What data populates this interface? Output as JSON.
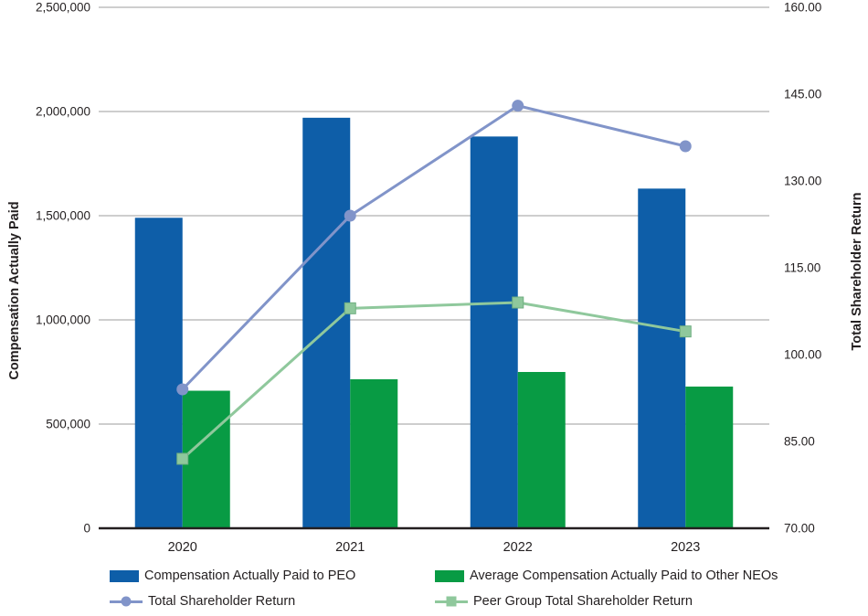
{
  "colors": {
    "peo_bar": "#0e5ea8",
    "neo_bar": "#089b44",
    "tsr_line": "#8194c9",
    "peer_tsr_line": "#8fc89c",
    "peer_marker_border": "#6fae80",
    "gridline": "#b1b1b1",
    "axis_line": "#231f20",
    "text": "#231f20"
  },
  "chart_data": {
    "type": "bar-line-combo",
    "grid": "horizontal",
    "legend_position": "bottom",
    "categories": [
      "2020",
      "2021",
      "2022",
      "2023"
    ],
    "bar_series": [
      {
        "key": "peo",
        "name": "Compensation Actually Paid to PEO",
        "axis": "left",
        "color_key": "peo_bar",
        "values": [
          1490000,
          1970000,
          1880000,
          1630000
        ]
      },
      {
        "key": "neo",
        "name": "Average Compensation Actually Paid to Other NEOs",
        "axis": "left",
        "color_key": "neo_bar",
        "values": [
          660000,
          715000,
          750000,
          680000
        ]
      }
    ],
    "line_series": [
      {
        "key": "tsr",
        "name": "Total Shareholder Return",
        "axis": "right",
        "marker": "circle",
        "color_key": "tsr_line",
        "values": [
          94,
          124,
          143,
          136
        ]
      },
      {
        "key": "peer_tsr",
        "name": "Peer Group Total Shareholder Return",
        "axis": "right",
        "marker": "square",
        "color_key": "peer_tsr_line",
        "values": [
          82,
          108,
          109,
          104
        ]
      }
    ],
    "left_axis": {
      "label": "Compensation Actually Paid",
      "min": 0,
      "max": 2500000,
      "step": 500000,
      "ticks_top_to_bottom": [
        "2,500,000",
        "2,000,000",
        "1,500,000",
        "1,000,000",
        "500,000",
        "0"
      ]
    },
    "right_axis": {
      "label": "Total Shareholder Return",
      "min": 70,
      "max": 160,
      "step": 15,
      "ticks_top_to_bottom": [
        "160.00",
        "145.00",
        "130.00",
        "115.00",
        "100.00",
        "85.00",
        "70.00"
      ]
    }
  }
}
